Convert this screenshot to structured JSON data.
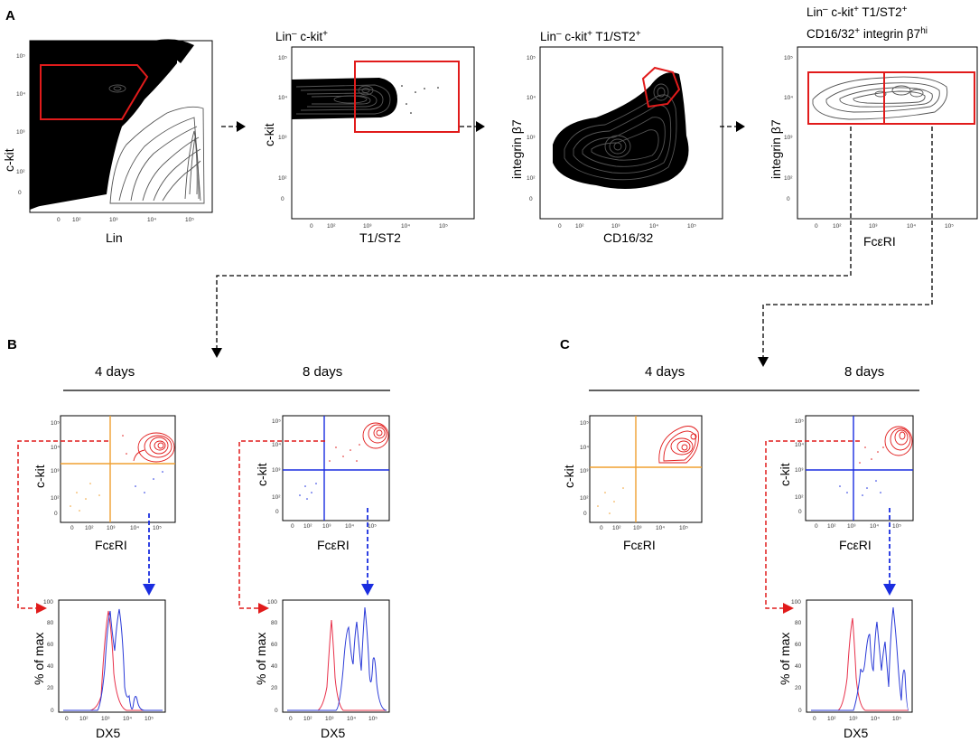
{
  "panels": {
    "a": "A",
    "b": "B",
    "c": "C"
  },
  "gating": [
    {
      "title": "",
      "x_label": "Lin",
      "y_label": "c-kit"
    },
    {
      "title_parts": [
        "Lin",
        "–",
        " c-kit",
        "+"
      ],
      "x_label": "T1/ST2",
      "y_label": "c-kit"
    },
    {
      "title_parts": [
        "Lin",
        "–",
        " c-kit",
        "+",
        " T1/ST2",
        "+"
      ],
      "x_label": "CD16/32",
      "y_label": "integrin β7"
    },
    {
      "title_line1": [
        "Lin",
        "–",
        " c-kit",
        "+",
        " T1/ST2",
        "+"
      ],
      "title_line2": [
        "CD16/32",
        "+",
        " integrin β7",
        "hi"
      ],
      "x_label": "FcεRI",
      "y_label": "integrin β7"
    }
  ],
  "timepoints": {
    "b_left": "4 days",
    "b_right": "8 days",
    "c_left": "4 days",
    "c_right": "8 days"
  },
  "small_plot_labels": {
    "y_ckit": "c-kit",
    "x_fceri": "FcεRI",
    "y_hist": "% of max",
    "x_hist": "DX5"
  },
  "ticks": {
    "log_x": [
      "0",
      "10²",
      "10³",
      "10⁴",
      "10⁵"
    ],
    "log_y": [
      "0",
      "10²",
      "10³",
      "10⁴",
      "10⁵"
    ],
    "hist_y": [
      "0",
      "20",
      "40",
      "60",
      "80",
      "100"
    ]
  },
  "colors": {
    "gate": "#e11b1b",
    "quad_4days": "#f0a030",
    "quad_8days": "#1a2de0",
    "hist_red": "#e8304a",
    "hist_blue": "#2b3bd8",
    "arrow_blue": "#1a2de0"
  }
}
